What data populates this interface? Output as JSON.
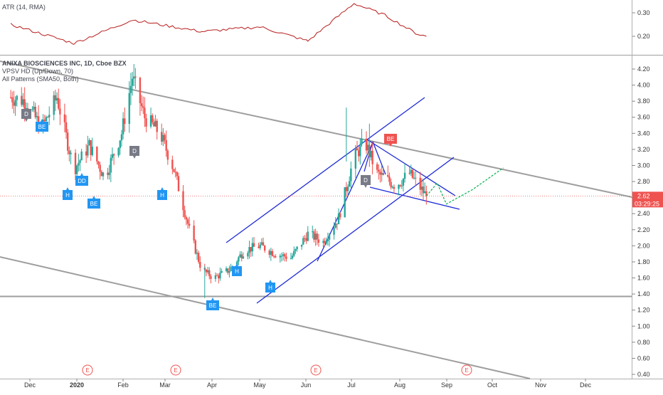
{
  "atr_pane": {
    "title": "ATR (14, RMA)",
    "y_ticks": [
      "0.30",
      "0.20"
    ],
    "line_color": "#b71c1c"
  },
  "main_pane": {
    "title": "ANIXA BIOSCIENCES INC, 1D, Cboe BZX",
    "indicator_1": "VPSV HD (Up/Down, 70)",
    "indicator_2": "All Patterns (SMA50, Both)",
    "y_ticks": [
      "4.20",
      "4.00",
      "3.80",
      "3.60",
      "3.40",
      "3.20",
      "3.00",
      "2.80",
      "2.60",
      "2.40",
      "2.20",
      "2.00",
      "1.80",
      "1.60",
      "1.40",
      "1.20",
      "1.00",
      "0.80",
      "0.60",
      "0.40"
    ],
    "last_price": "2.62",
    "countdown": "03:29:25",
    "price_label_color": "#ef5350",
    "up_color": "#26a69a",
    "down_color": "#ef5350"
  },
  "x_axis": {
    "labels": [
      "Dec",
      "2020",
      "Feb",
      "Mar",
      "Apr",
      "May",
      "Jun",
      "Jul",
      "Aug",
      "Sep",
      "Oct",
      "Nov",
      "Dec"
    ]
  },
  "earnings_marker": "E",
  "pattern_labels": [
    {
      "text": "D",
      "kind": "bearish-gray"
    },
    {
      "text": "BE",
      "kind": "bullish"
    },
    {
      "text": "DD",
      "kind": "bullish"
    },
    {
      "text": "H",
      "kind": "bullish"
    },
    {
      "text": "BE",
      "kind": "bullish"
    },
    {
      "text": "D",
      "kind": "bearish-gray"
    },
    {
      "text": "H",
      "kind": "bullish"
    },
    {
      "text": "BE",
      "kind": "bullish"
    },
    {
      "text": "H",
      "kind": "bullish"
    },
    {
      "text": "H",
      "kind": "bullish"
    },
    {
      "text": "D",
      "kind": "bearish-gray"
    },
    {
      "text": "BE",
      "kind": "bearish"
    }
  ],
  "chart_data": {
    "type": "candlestick",
    "series": [
      {
        "name": "ANIXA BIOSCIENCES INC",
        "approx_closes": [
          {
            "x": "2019-11-25",
            "y": 3.85
          },
          {
            "x": "2019-12-05",
            "y": 3.8
          },
          {
            "x": "2019-12-15",
            "y": 3.45
          },
          {
            "x": "2019-12-25",
            "y": 3.85
          },
          {
            "x": "2020-01-05",
            "y": 2.95
          },
          {
            "x": "2020-01-15",
            "y": 3.25
          },
          {
            "x": "2020-01-25",
            "y": 2.85
          },
          {
            "x": "2020-02-05",
            "y": 3.4
          },
          {
            "x": "2020-02-12",
            "y": 4.1
          },
          {
            "x": "2020-02-20",
            "y": 3.6
          },
          {
            "x": "2020-03-01",
            "y": 3.4
          },
          {
            "x": "2020-03-10",
            "y": 2.95
          },
          {
            "x": "2020-03-20",
            "y": 2.2
          },
          {
            "x": "2020-03-28",
            "y": 1.7
          },
          {
            "x": "2020-04-05",
            "y": 1.6
          },
          {
            "x": "2020-04-15",
            "y": 1.7
          },
          {
            "x": "2020-04-25",
            "y": 1.95
          },
          {
            "x": "2020-05-05",
            "y": 2.0
          },
          {
            "x": "2020-05-15",
            "y": 1.9
          },
          {
            "x": "2020-05-25",
            "y": 1.85
          },
          {
            "x": "2020-06-05",
            "y": 2.15
          },
          {
            "x": "2020-06-15",
            "y": 2.05
          },
          {
            "x": "2020-06-25",
            "y": 2.35
          },
          {
            "x": "2020-07-05",
            "y": 3.1
          },
          {
            "x": "2020-07-12",
            "y": 3.3
          },
          {
            "x": "2020-07-20",
            "y": 2.9
          },
          {
            "x": "2020-08-01",
            "y": 2.75
          },
          {
            "x": "2020-08-10",
            "y": 2.9
          },
          {
            "x": "2020-08-21",
            "y": 2.62
          }
        ]
      }
    ],
    "projection": [
      {
        "x": "2020-08-21",
        "y": 2.62
      },
      {
        "x": "2020-08-28",
        "y": 2.78
      },
      {
        "x": "2020-09-03",
        "y": 2.52
      },
      {
        "x": "2020-09-20",
        "y": 2.7
      },
      {
        "x": "2020-10-10",
        "y": 2.97
      }
    ],
    "atr": [
      {
        "x": "2019-11-25",
        "y": 0.25
      },
      {
        "x": "2020-01-05",
        "y": 0.17
      },
      {
        "x": "2020-02-12",
        "y": 0.27
      },
      {
        "x": "2020-03-28",
        "y": 0.22
      },
      {
        "x": "2020-05-05",
        "y": 0.24
      },
      {
        "x": "2020-06-05",
        "y": 0.18
      },
      {
        "x": "2020-07-05",
        "y": 0.34
      },
      {
        "x": "2020-07-25",
        "y": 0.29
      },
      {
        "x": "2020-08-15",
        "y": 0.21
      },
      {
        "x": "2020-08-21",
        "y": 0.2
      }
    ],
    "x_range": [
      "2019-11-18",
      "2021-01-01"
    ],
    "ylim": [
      0.38,
      4.26
    ],
    "atr_ylim": [
      0.13,
      0.36
    ],
    "grid": false,
    "legend": "top-left"
  }
}
